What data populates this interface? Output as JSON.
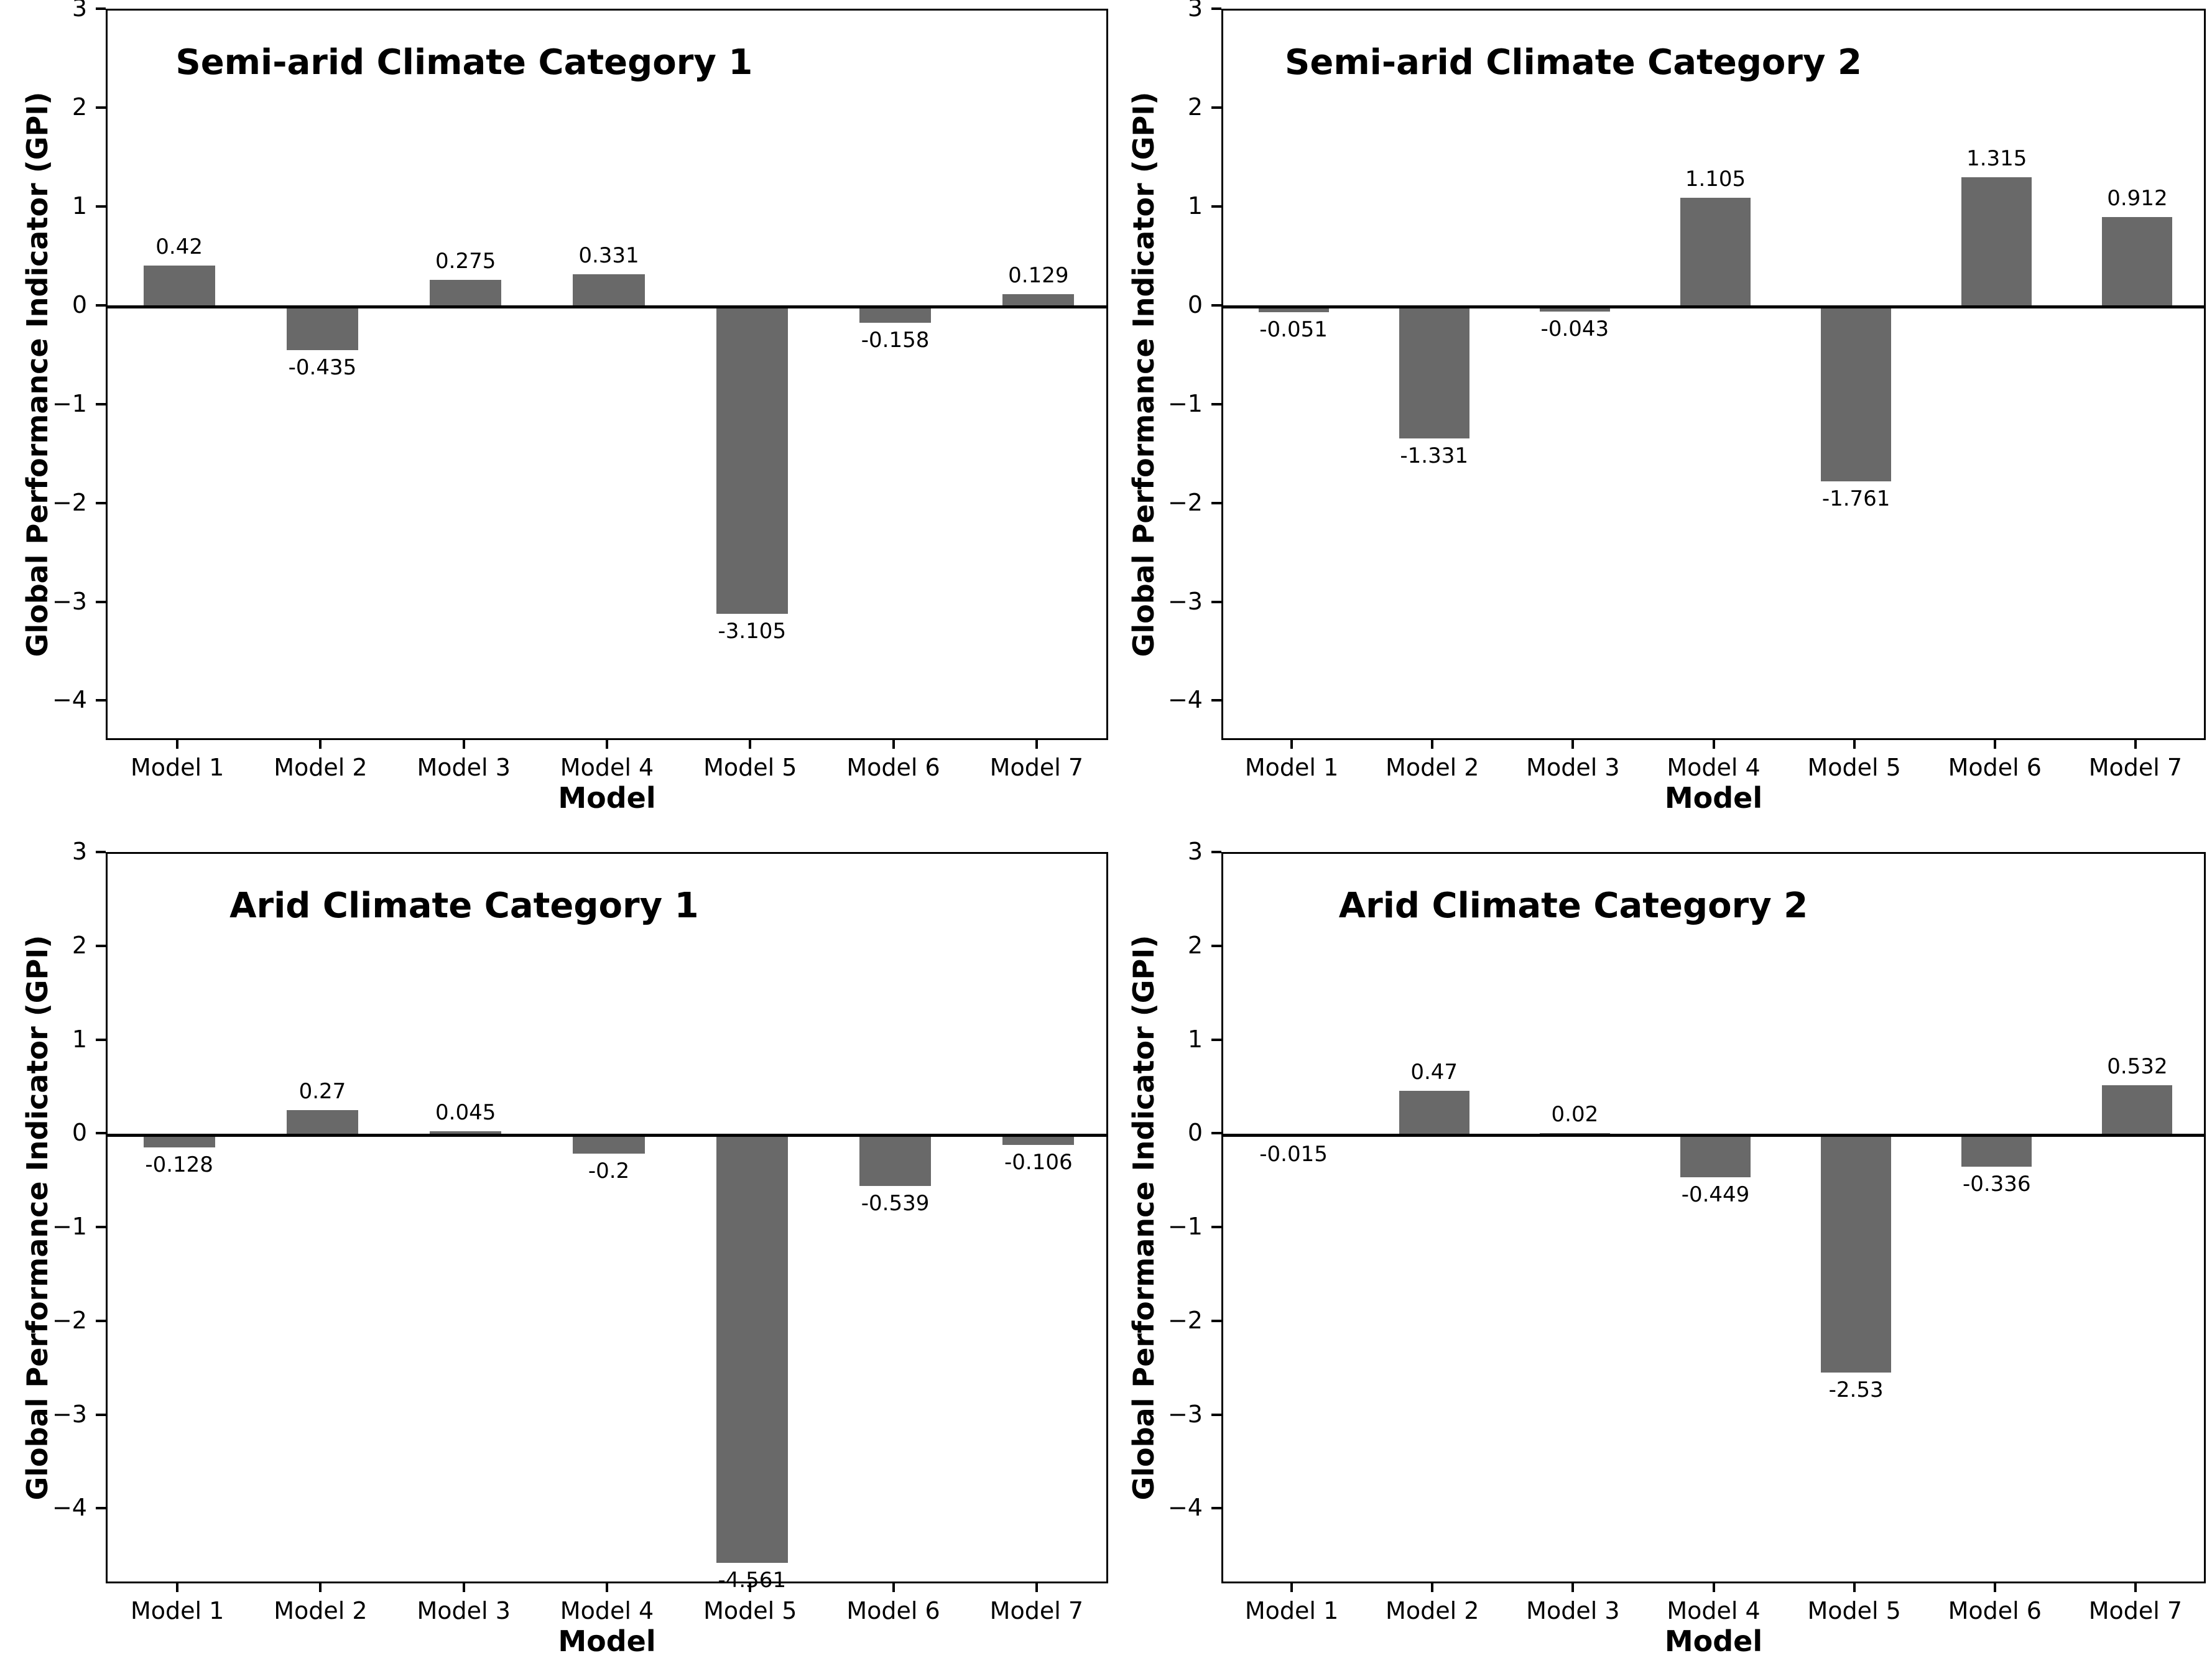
{
  "figure": {
    "ylabel": "Global Performance Indicator (GPI)",
    "xlabel": "Model",
    "bar_color": "#696969",
    "axis_color": "#000000",
    "background_color": "#ffffff"
  },
  "chart_data": [
    {
      "type": "bar",
      "title": "Semi-arid Climate Category 1",
      "categories": [
        "Model 1",
        "Model 2",
        "Model 3",
        "Model 4",
        "Model 5",
        "Model 6",
        "Model 7"
      ],
      "values": [
        0.42,
        -0.435,
        0.275,
        0.331,
        -3.105,
        -0.158,
        0.129
      ],
      "xlabel": "Model",
      "ylabel": "Global Performance Indicator (GPI)",
      "ylim": [
        -4.4,
        3
      ],
      "yticks": [
        3,
        2,
        1,
        0,
        -1,
        -2,
        -3,
        -4
      ],
      "grid": false,
      "legend": "none"
    },
    {
      "type": "bar",
      "title": "Semi-arid Climate Category 2",
      "categories": [
        "Model 1",
        "Model 2",
        "Model 3",
        "Model 4",
        "Model 5",
        "Model 6",
        "Model 7"
      ],
      "values": [
        -0.051,
        -1.331,
        -0.043,
        1.105,
        -1.761,
        1.315,
        0.912
      ],
      "xlabel": "Model",
      "ylabel": "Global Performance Indicator (GPI)",
      "ylim": [
        -4.4,
        3
      ],
      "yticks": [
        3,
        2,
        1,
        0,
        -1,
        -2,
        -3,
        -4
      ],
      "grid": false,
      "legend": "none"
    },
    {
      "type": "bar",
      "title": "Arid Climate Category 1",
      "categories": [
        "Model 1",
        "Model 2",
        "Model 3",
        "Model 4",
        "Model 5",
        "Model 6",
        "Model 7"
      ],
      "values": [
        -0.128,
        0.27,
        0.045,
        -0.2,
        -4.561,
        -0.539,
        -0.106
      ],
      "xlabel": "Model",
      "ylabel": "Global Performance Indicator (GPI)",
      "ylim": [
        -4.8,
        3
      ],
      "yticks": [
        3,
        2,
        1,
        0,
        -1,
        -2,
        -3,
        -4
      ],
      "grid": false,
      "legend": "none"
    },
    {
      "type": "bar",
      "title": "Arid Climate Category 2",
      "categories": [
        "Model 1",
        "Model 2",
        "Model 3",
        "Model 4",
        "Model 5",
        "Model 6",
        "Model 7"
      ],
      "values": [
        -0.015,
        0.47,
        0.02,
        -0.449,
        -2.53,
        -0.336,
        0.532
      ],
      "xlabel": "Model",
      "ylabel": "Global Performance Indicator (GPI)",
      "ylim": [
        -4.8,
        3
      ],
      "yticks": [
        3,
        2,
        1,
        0,
        -1,
        -2,
        -3,
        -4
      ],
      "grid": false,
      "legend": "none"
    }
  ]
}
